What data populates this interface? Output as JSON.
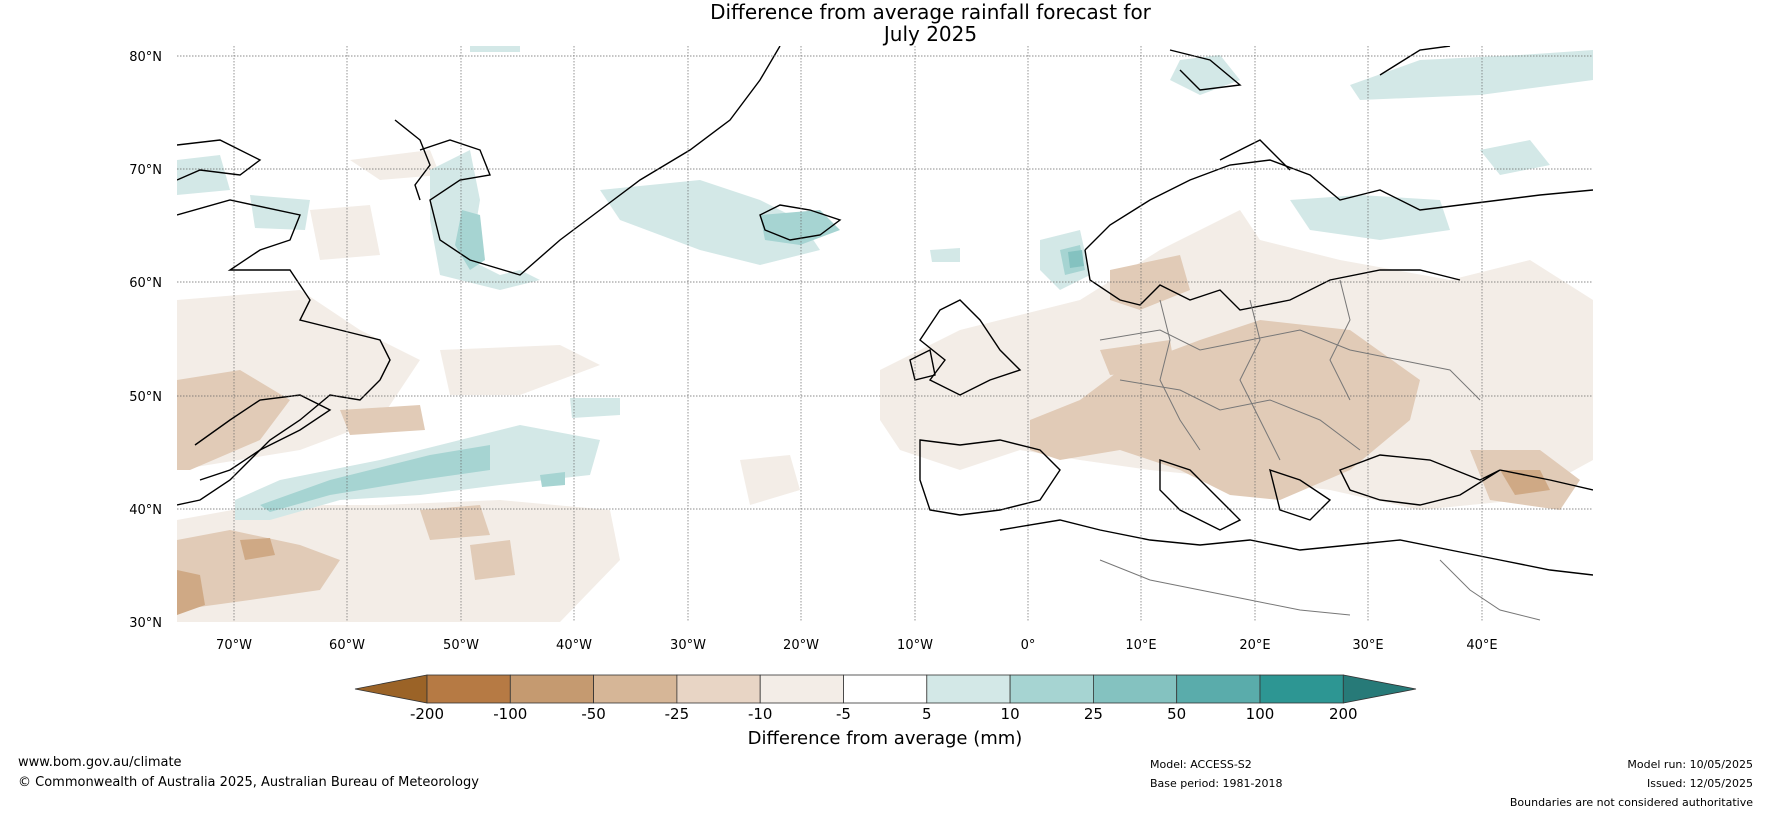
{
  "title": {
    "line1": "Difference from average rainfall forecast for",
    "line2": "July 2025"
  },
  "map": {
    "lat_labels": [
      "80°N",
      "70°N",
      "60°N",
      "50°N",
      "40°N",
      "30°N"
    ],
    "lon_labels": [
      "70°W",
      "60°W",
      "50°W",
      "40°W",
      "30°W",
      "20°W",
      "10°W",
      "0°",
      "10°E",
      "20°E",
      "30°E",
      "40°E"
    ]
  },
  "colorbar": {
    "tick_labels": [
      "-200",
      "-100",
      "-50",
      "-25",
      "-10",
      "-5",
      "5",
      "10",
      "25",
      "50",
      "100",
      "200"
    ],
    "colors": [
      "#9b6327",
      "#b67a44",
      "#c59a70",
      "#d6b697",
      "#e8d5c5",
      "#f3ede7",
      "#ffffff",
      "#d3e8e7",
      "#a6d4d2",
      "#84c2c0",
      "#5aacab",
      "#2d9693",
      "#277a78"
    ],
    "label": "Difference from average (mm)"
  },
  "footer": {
    "website": "www.bom.gov.au/climate",
    "copyright": "© Commonwealth of Australia 2025, Australian Bureau of Meteorology",
    "model": "Model: ACCESS-S2",
    "base_period": "Base period: 1981-2018",
    "model_run": "Model run: 10/05/2025",
    "issued": "Issued: 12/05/2025",
    "disclaimer": "Boundaries are not considered authoritative"
  }
}
